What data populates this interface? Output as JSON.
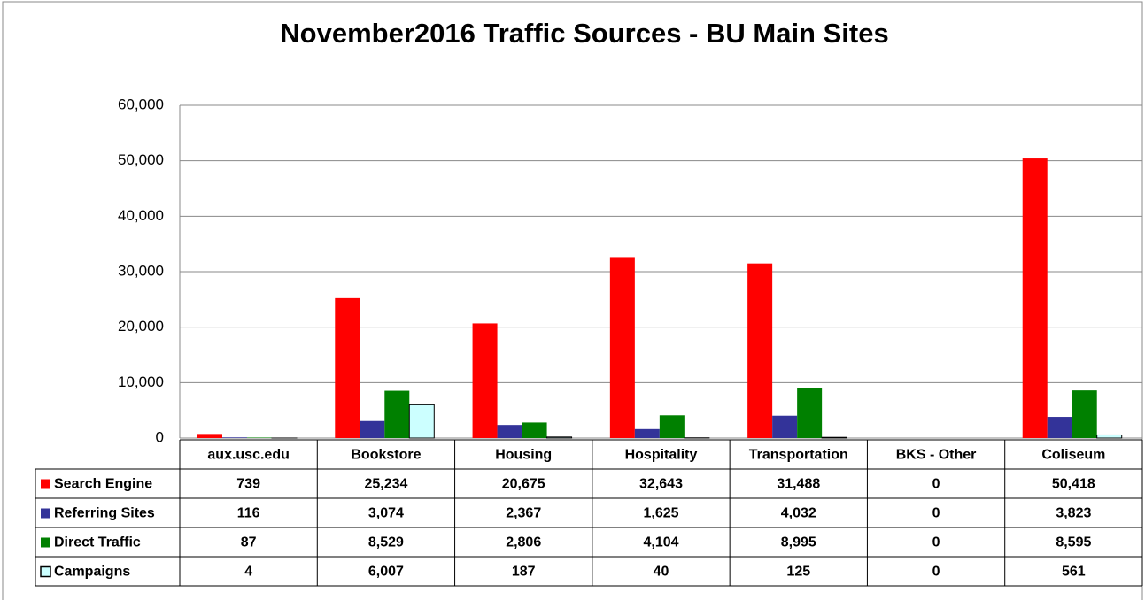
{
  "chart_data": {
    "type": "bar",
    "title": "November2016 Traffic Sources - BU Main Sites",
    "categories": [
      "aux.usc.edu",
      "Bookstore",
      "Housing",
      "Hospitality",
      "Transportation",
      "BKS - Other",
      "Coliseum"
    ],
    "series": [
      {
        "name": "Search Engine",
        "color": "#ff0000",
        "values": [
          739,
          25234,
          20675,
          32643,
          31488,
          0,
          50418
        ],
        "value_labels": [
          "739",
          "25,234",
          "20,675",
          "32,643",
          "31,488",
          "0",
          "50,418"
        ]
      },
      {
        "name": "Referring Sites",
        "color": "#333399",
        "values": [
          116,
          3074,
          2367,
          1625,
          4032,
          0,
          3823
        ],
        "value_labels": [
          "116",
          "3,074",
          "2,367",
          "1,625",
          "4,032",
          "0",
          "3,823"
        ]
      },
      {
        "name": "Direct Traffic",
        "color": "#008000",
        "values": [
          87,
          8529,
          2806,
          4104,
          8995,
          0,
          8595
        ],
        "value_labels": [
          "87",
          "8,529",
          "2,806",
          "4,104",
          "8,995",
          "0",
          "8,595"
        ]
      },
      {
        "name": "Campaigns",
        "color": "#ccffff",
        "values": [
          4,
          6007,
          187,
          40,
          125,
          0,
          561
        ],
        "value_labels": [
          "4",
          "6,007",
          "187",
          "40",
          "125",
          "0",
          "561"
        ]
      }
    ],
    "ylim": [
      0,
      60000
    ],
    "yticks": [
      0,
      {
        "value": 10000,
        "label": "10,000"
      },
      {
        "value": 20000,
        "label": "20,000"
      },
      {
        "value": 30000,
        "label": "30,000"
      },
      {
        "value": 40000,
        "label": "40,000"
      },
      {
        "value": 50000,
        "label": "50,000"
      },
      {
        "value": 60000,
        "label": "60,000"
      }
    ],
    "grid": true
  }
}
